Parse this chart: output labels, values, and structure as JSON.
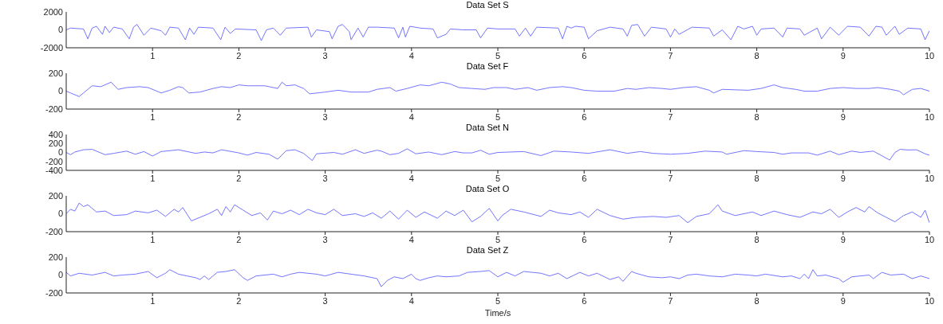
{
  "chart_data": [
    {
      "type": "line",
      "title": "Data Set S",
      "color": "#5050ff",
      "xlim": [
        0,
        10
      ],
      "xticks": [
        1,
        2,
        3,
        4,
        5,
        6,
        7,
        8,
        9,
        10
      ],
      "ylim": [
        -2000,
        2000
      ],
      "yticks": [
        -2000,
        0,
        2000
      ],
      "x": [
        0,
        0.05,
        0.2,
        0.25,
        0.3,
        0.35,
        0.42,
        0.45,
        0.5,
        0.55,
        0.65,
        0.73,
        0.78,
        0.82,
        0.9,
        0.98,
        1.1,
        1.15,
        1.2,
        1.3,
        1.38,
        1.43,
        1.48,
        1.53,
        1.7,
        1.79,
        1.84,
        1.9,
        1.96,
        2.2,
        2.26,
        2.32,
        2.4,
        2.48,
        2.55,
        2.8,
        2.84,
        2.9,
        3.05,
        3.08,
        3.15,
        3.2,
        3.28,
        3.3,
        3.38,
        3.44,
        3.5,
        3.6,
        3.8,
        3.85,
        3.9,
        3.93,
        3.98,
        4.1,
        4.25,
        4.3,
        4.4,
        4.45,
        4.6,
        4.75,
        4.8,
        4.88,
        5,
        5.2,
        5.25,
        5.32,
        5.38,
        5.45,
        5.7,
        5.75,
        5.8,
        5.85,
        5.9,
        6,
        6.05,
        6.15,
        6.3,
        6.45,
        6.5,
        6.55,
        6.62,
        6.7,
        6.78,
        6.95,
        7,
        7.05,
        7.1,
        7.25,
        7.45,
        7.5,
        7.6,
        7.7,
        7.78,
        7.85,
        7.95,
        8,
        8.05,
        8.2,
        8.3,
        8.35,
        8.5,
        8.55,
        8.7,
        8.75,
        8.85,
        8.95,
        9.05,
        9.2,
        9.3,
        9.38,
        9.45,
        9.5,
        9.6,
        9.65,
        9.75,
        9.9,
        9.95,
        10
      ],
      "values": [
        0,
        200,
        100,
        -1000,
        200,
        400,
        -500,
        400,
        -300,
        300,
        100,
        -1000,
        300,
        600,
        -600,
        200,
        -100,
        -600,
        300,
        200,
        -1100,
        200,
        -500,
        300,
        200,
        -1100,
        300,
        -400,
        100,
        0,
        -1200,
        0,
        200,
        -600,
        200,
        300,
        -800,
        0,
        -200,
        -1000,
        400,
        600,
        -200,
        -1100,
        200,
        -800,
        300,
        300,
        200,
        -900,
        300,
        -800,
        400,
        200,
        100,
        -900,
        -500,
        100,
        0,
        0,
        -900,
        200,
        100,
        100,
        -700,
        200,
        -700,
        300,
        200,
        -1000,
        400,
        200,
        400,
        300,
        -1000,
        -100,
        300,
        100,
        -700,
        500,
        600,
        -700,
        300,
        100,
        -800,
        100,
        -500,
        300,
        200,
        -700,
        0,
        -1100,
        400,
        100,
        400,
        -600,
        100,
        200,
        -800,
        200,
        100,
        -600,
        200,
        -1000,
        300,
        -600,
        400,
        300,
        -700,
        400,
        300,
        -600,
        400,
        -500,
        200,
        100,
        -1100,
        -100
      ]
    },
    {
      "type": "line",
      "title": "Data Set F",
      "color": "#5050ff",
      "xlim": [
        0,
        10
      ],
      "xticks": [
        1,
        2,
        3,
        4,
        5,
        6,
        7,
        8,
        9,
        10
      ],
      "ylim": [
        -200,
        200
      ],
      "yticks": [
        -200,
        0,
        200
      ],
      "x": [
        0,
        0.05,
        0.15,
        0.25,
        0.3,
        0.4,
        0.52,
        0.6,
        0.7,
        0.85,
        0.95,
        1.1,
        1.2,
        1.3,
        1.35,
        1.42,
        1.55,
        1.7,
        1.8,
        1.9,
        2,
        2.1,
        2.3,
        2.45,
        2.5,
        2.55,
        2.65,
        2.75,
        2.82,
        3,
        3.15,
        3.3,
        3.5,
        3.6,
        3.75,
        3.82,
        3.95,
        4.1,
        4.2,
        4.35,
        4.45,
        4.55,
        4.7,
        4.85,
        4.95,
        5.1,
        5.2,
        5.35,
        5.45,
        5.6,
        5.75,
        5.85,
        6,
        6.15,
        6.35,
        6.5,
        6.6,
        6.75,
        6.9,
        7,
        7.15,
        7.3,
        7.45,
        7.5,
        7.6,
        7.75,
        7.9,
        8.05,
        8.2,
        8.3,
        8.45,
        8.55,
        8.7,
        8.85,
        9,
        9.15,
        9.3,
        9.4,
        9.55,
        9.65,
        9.7,
        9.8,
        9.9,
        10
      ],
      "values": [
        0,
        -20,
        -60,
        20,
        60,
        50,
        100,
        20,
        40,
        50,
        40,
        -20,
        10,
        50,
        40,
        -20,
        -10,
        30,
        50,
        40,
        70,
        60,
        60,
        30,
        100,
        60,
        70,
        30,
        -30,
        -10,
        10,
        -10,
        -10,
        20,
        40,
        0,
        30,
        70,
        60,
        100,
        80,
        40,
        30,
        20,
        40,
        40,
        20,
        40,
        10,
        40,
        50,
        40,
        10,
        0,
        0,
        30,
        20,
        40,
        30,
        20,
        40,
        50,
        10,
        -20,
        20,
        15,
        10,
        30,
        70,
        40,
        20,
        0,
        0,
        30,
        40,
        30,
        30,
        40,
        20,
        0,
        -40,
        20,
        30,
        0
      ]
    },
    {
      "type": "line",
      "title": "Data Set N",
      "color": "#5050ff",
      "xlim": [
        0,
        10
      ],
      "xticks": [
        1,
        2,
        3,
        4,
        5,
        6,
        7,
        8,
        9,
        10
      ],
      "ylim": [
        -400,
        400
      ],
      "yticks": [
        -400,
        -200,
        0,
        200,
        400
      ],
      "x": [
        0,
        0.05,
        0.1,
        0.2,
        0.3,
        0.45,
        0.55,
        0.7,
        0.8,
        0.9,
        1,
        1.1,
        1.3,
        1.5,
        1.6,
        1.7,
        1.8,
        2,
        2.1,
        2.2,
        2.35,
        2.45,
        2.55,
        2.65,
        2.75,
        2.85,
        2.9,
        3.1,
        3.2,
        3.35,
        3.45,
        3.6,
        3.65,
        3.75,
        3.85,
        3.95,
        4.05,
        4.2,
        4.35,
        4.5,
        4.6,
        4.7,
        4.8,
        4.9,
        5,
        5.3,
        5.5,
        5.65,
        5.85,
        6.05,
        6.3,
        6.5,
        6.65,
        6.8,
        7,
        7.2,
        7.4,
        7.6,
        7.65,
        7.85,
        8,
        8.2,
        8.3,
        8.4,
        8.6,
        8.7,
        8.85,
        8.95,
        9.1,
        9.2,
        9.35,
        9.54,
        9.6,
        9.66,
        9.75,
        9.85,
        9.95,
        10
      ],
      "values": [
        0,
        -50,
        10,
        60,
        70,
        -50,
        -20,
        30,
        -40,
        20,
        -80,
        20,
        60,
        -20,
        10,
        -10,
        60,
        -10,
        -60,
        0,
        -40,
        -150,
        40,
        60,
        -20,
        -180,
        -30,
        0,
        -40,
        60,
        -20,
        50,
        30,
        -50,
        -20,
        80,
        -30,
        10,
        -50,
        20,
        -10,
        -10,
        50,
        -40,
        0,
        20,
        -70,
        30,
        10,
        -20,
        60,
        -20,
        20,
        -20,
        -40,
        -20,
        30,
        10,
        -40,
        40,
        20,
        0,
        -40,
        -10,
        -10,
        -60,
        30,
        -50,
        30,
        0,
        30,
        -170,
        0,
        70,
        55,
        60,
        -30,
        -60
      ]
    },
    {
      "type": "line",
      "title": "Data Set O",
      "color": "#5050ff",
      "xlim": [
        0,
        10
      ],
      "xticks": [
        1,
        2,
        3,
        4,
        5,
        6,
        7,
        8,
        9,
        10
      ],
      "ylim": [
        -200,
        200
      ],
      "yticks": [
        -200,
        0,
        200
      ],
      "x": [
        0,
        0.05,
        0.1,
        0.15,
        0.2,
        0.25,
        0.35,
        0.45,
        0.55,
        0.7,
        0.8,
        0.95,
        1.05,
        1.15,
        1.25,
        1.3,
        1.35,
        1.45,
        1.55,
        1.65,
        1.75,
        1.8,
        1.85,
        1.9,
        1.95,
        2.05,
        2.15,
        2.25,
        2.33,
        2.4,
        2.5,
        2.6,
        2.7,
        2.8,
        2.9,
        3,
        3.1,
        3.2,
        3.35,
        3.45,
        3.55,
        3.65,
        3.75,
        3.85,
        3.95,
        4.05,
        4.15,
        4.3,
        4.4,
        4.5,
        4.6,
        4.7,
        4.8,
        4.9,
        5,
        5.05,
        5.15,
        5.3,
        5.5,
        5.6,
        5.7,
        5.85,
        5.95,
        6.05,
        6.15,
        6.3,
        6.45,
        6.6,
        6.8,
        6.95,
        7.1,
        7.2,
        7.3,
        7.45,
        7.55,
        7.6,
        7.75,
        7.95,
        8.05,
        8.2,
        8.35,
        8.5,
        8.65,
        8.75,
        8.85,
        8.95,
        9.05,
        9.15,
        9.25,
        9.3,
        9.4,
        9.5,
        9.6,
        9.7,
        9.8,
        9.9,
        9.95,
        10
      ],
      "values": [
        0,
        50,
        30,
        120,
        80,
        100,
        20,
        30,
        -20,
        -10,
        30,
        10,
        40,
        -30,
        50,
        20,
        70,
        -80,
        -40,
        0,
        50,
        -20,
        80,
        20,
        100,
        40,
        -20,
        10,
        -70,
        30,
        0,
        40,
        -10,
        50,
        10,
        -10,
        50,
        -20,
        0,
        -30,
        10,
        -50,
        30,
        -60,
        40,
        -40,
        20,
        -50,
        30,
        -20,
        40,
        -90,
        -30,
        60,
        -80,
        -20,
        50,
        20,
        -30,
        40,
        10,
        -10,
        20,
        -40,
        50,
        -20,
        -60,
        -40,
        -30,
        -40,
        -20,
        -100,
        -30,
        0,
        100,
        30,
        -20,
        20,
        -20,
        30,
        -10,
        -40,
        20,
        0,
        50,
        -40,
        20,
        70,
        20,
        80,
        10,
        -40,
        -90,
        -20,
        20,
        -40,
        40,
        -100
      ]
    },
    {
      "type": "line",
      "title": "Data Set Z",
      "xlabel": "Time/s",
      "color": "#5050ff",
      "xlim": [
        0,
        10
      ],
      "xticks": [
        1,
        2,
        3,
        4,
        5,
        6,
        7,
        8,
        9,
        10
      ],
      "ylim": [
        -200,
        200
      ],
      "yticks": [
        -200,
        0,
        200
      ],
      "x": [
        0,
        0.05,
        0.15,
        0.3,
        0.45,
        0.55,
        0.65,
        0.8,
        0.95,
        1.05,
        1.15,
        1.2,
        1.3,
        1.4,
        1.5,
        1.55,
        1.6,
        1.65,
        1.75,
        1.85,
        1.95,
        2.05,
        2.1,
        2.2,
        2.4,
        2.5,
        2.6,
        2.7,
        2.8,
        2.9,
        3,
        3.15,
        3.3,
        3.45,
        3.6,
        3.65,
        3.72,
        3.8,
        3.9,
        4,
        4.05,
        4.1,
        4.2,
        4.3,
        4.4,
        4.55,
        4.65,
        4.8,
        4.9,
        5,
        5.1,
        5.2,
        5.3,
        5.5,
        5.6,
        5.7,
        5.8,
        5.95,
        6.05,
        6.15,
        6.3,
        6.4,
        6.45,
        6.55,
        6.6,
        6.75,
        6.9,
        7,
        7.1,
        7.2,
        7.3,
        7.45,
        7.6,
        7.75,
        7.9,
        8,
        8.1,
        8.3,
        8.4,
        8.5,
        8.55,
        8.6,
        8.65,
        8.7,
        8.8,
        8.95,
        9,
        9.1,
        9.3,
        9.35,
        9.45,
        9.55,
        9.7,
        9.8,
        9.9,
        10
      ],
      "values": [
        30,
        -10,
        20,
        0,
        30,
        -10,
        0,
        10,
        40,
        -30,
        20,
        60,
        10,
        -10,
        -30,
        -50,
        -10,
        -50,
        30,
        40,
        60,
        -30,
        -60,
        -10,
        10,
        -20,
        10,
        30,
        20,
        10,
        -10,
        30,
        10,
        -10,
        -40,
        -130,
        -60,
        -20,
        -40,
        10,
        -40,
        -60,
        -30,
        -10,
        -20,
        -10,
        30,
        40,
        50,
        -20,
        30,
        -10,
        40,
        20,
        -10,
        20,
        -40,
        30,
        -10,
        20,
        -50,
        -20,
        -70,
        40,
        20,
        -20,
        -30,
        -20,
        -40,
        0,
        10,
        -10,
        -20,
        10,
        0,
        -10,
        10,
        -20,
        -10,
        -40,
        10,
        -40,
        60,
        -10,
        0,
        -40,
        -80,
        -20,
        0,
        -40,
        30,
        0,
        10,
        -40,
        -10,
        -40
      ]
    }
  ]
}
